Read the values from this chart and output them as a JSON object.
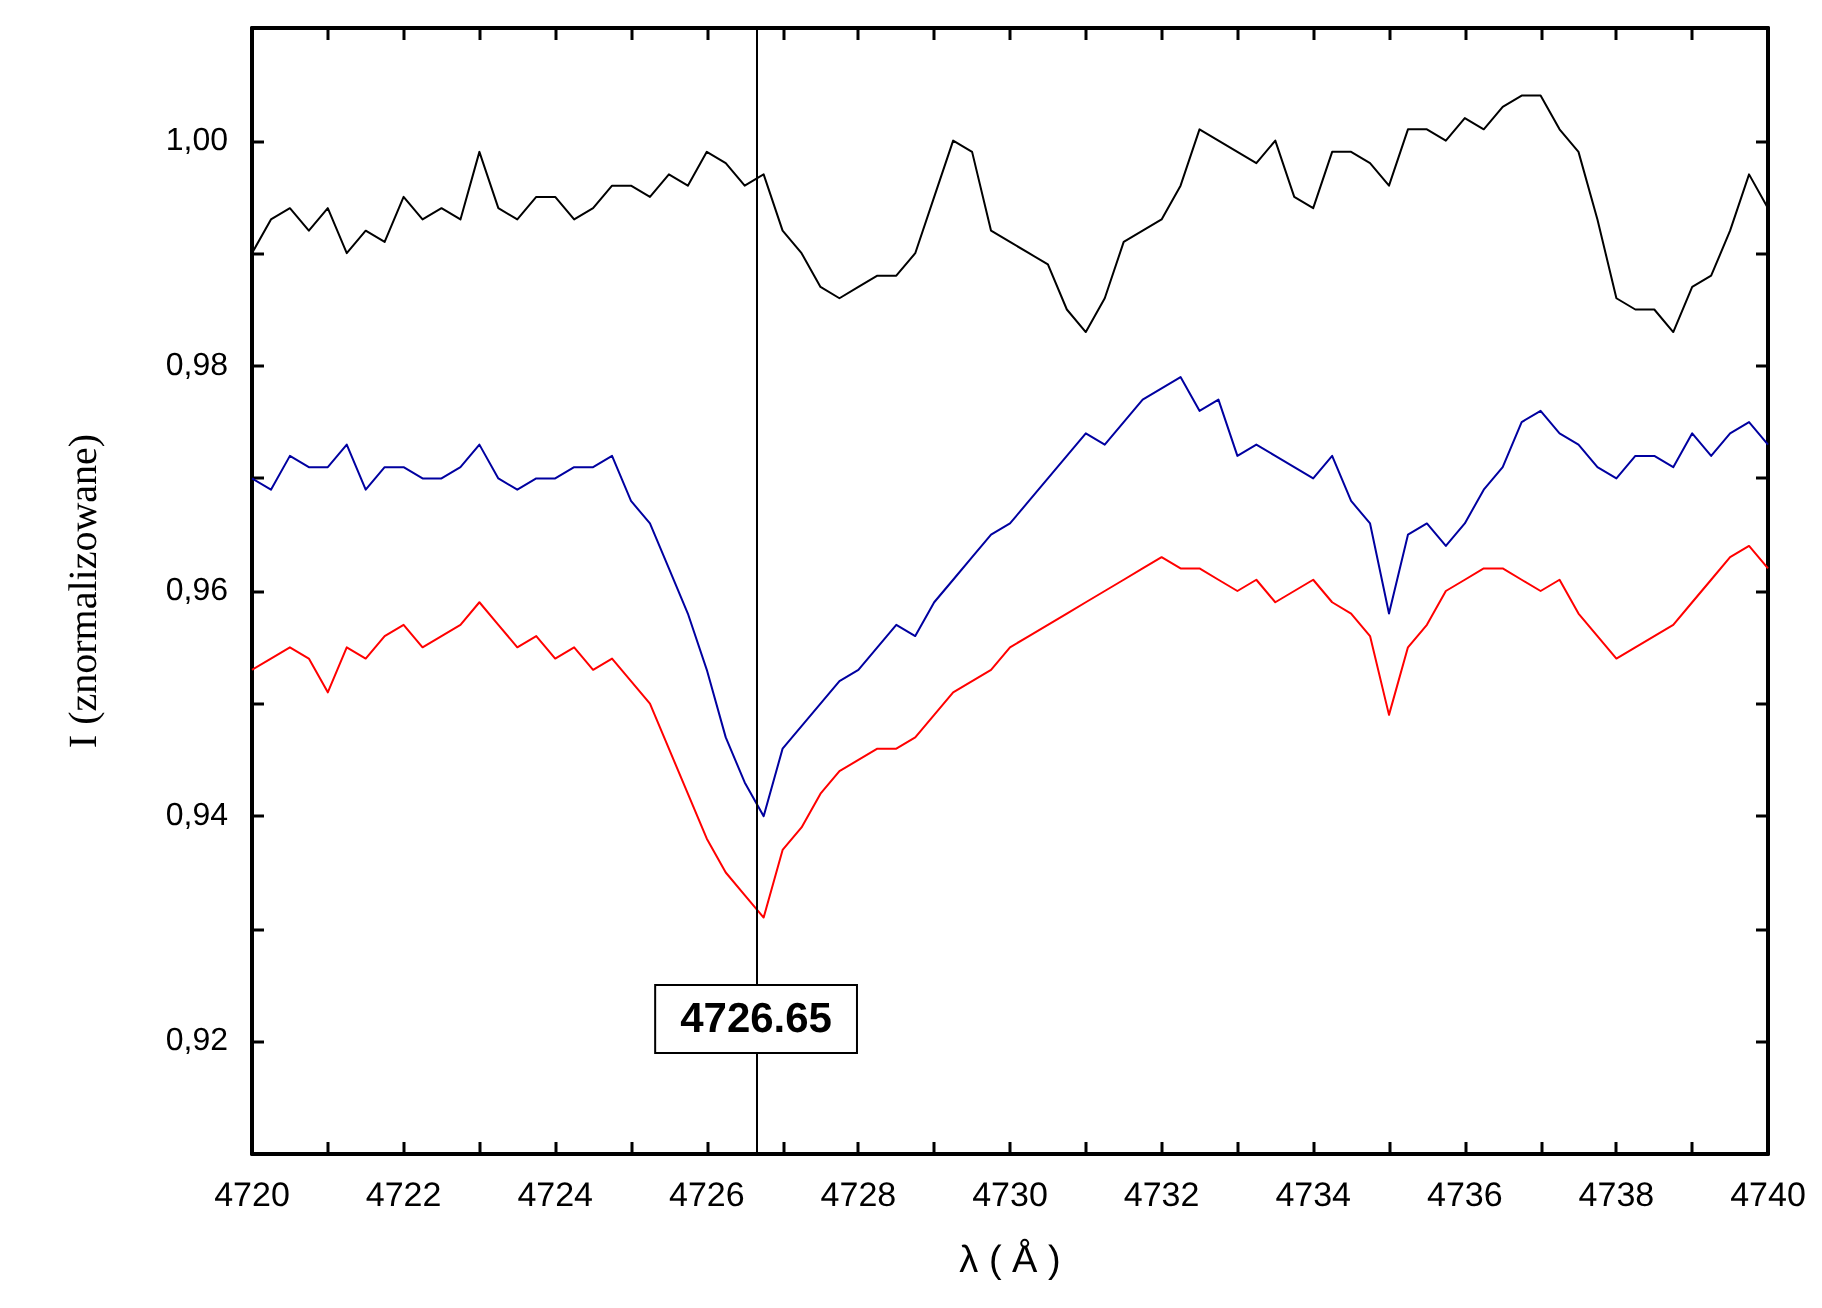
{
  "chart_data": {
    "type": "line",
    "xlabel": "λ ( Å )",
    "ylabel": "I (znormalizowane)",
    "x": [
      4720,
      4720.25,
      4720.5,
      4720.75,
      4721,
      4721.25,
      4721.5,
      4721.75,
      4722,
      4722.25,
      4722.5,
      4722.75,
      4723,
      4723.25,
      4723.5,
      4723.75,
      4724,
      4724.25,
      4724.5,
      4724.75,
      4725,
      4725.25,
      4725.5,
      4725.75,
      4726,
      4726.25,
      4726.5,
      4726.75,
      4727,
      4727.25,
      4727.5,
      4727.75,
      4728,
      4728.25,
      4728.5,
      4728.75,
      4729,
      4729.25,
      4729.5,
      4729.75,
      4730,
      4730.25,
      4730.5,
      4730.75,
      4731,
      4731.25,
      4731.5,
      4731.75,
      4732,
      4732.25,
      4732.5,
      4732.75,
      4733,
      4733.25,
      4733.5,
      4733.75,
      4734,
      4734.25,
      4734.5,
      4734.75,
      4735,
      4735.25,
      4735.5,
      4735.75,
      4736,
      4736.25,
      4736.5,
      4736.75,
      4737,
      4737.25,
      4737.5,
      4737.75,
      4738,
      4738.25,
      4738.5,
      4738.75,
      4739,
      4739.25,
      4739.5,
      4739.75,
      4740
    ],
    "series": [
      {
        "color": "#000000",
        "values": [
          0.99,
          0.993,
          0.994,
          0.992,
          0.994,
          0.99,
          0.992,
          0.991,
          0.995,
          0.993,
          0.994,
          0.993,
          0.999,
          0.994,
          0.993,
          0.995,
          0.995,
          0.993,
          0.994,
          0.996,
          0.996,
          0.995,
          0.997,
          0.996,
          0.999,
          0.998,
          0.996,
          0.997,
          0.992,
          0.99,
          0.987,
          0.986,
          0.987,
          0.988,
          0.988,
          0.99,
          0.995,
          1.0,
          0.999,
          0.992,
          0.991,
          0.99,
          0.989,
          0.985,
          0.983,
          0.986,
          0.991,
          0.992,
          0.993,
          0.996,
          1.001,
          1.0,
          0.999,
          0.998,
          1.0,
          0.995,
          0.994,
          0.999,
          0.999,
          0.998,
          0.996,
          1.001,
          1.001,
          1.0,
          1.002,
          1.001,
          1.003,
          1.004,
          1.004,
          1.001,
          0.999,
          0.993,
          0.986,
          0.985,
          0.985,
          0.983,
          0.987,
          0.988,
          0.992,
          0.997,
          0.994
        ]
      },
      {
        "color": "#0000a0",
        "values": [
          0.97,
          0.969,
          0.972,
          0.971,
          0.971,
          0.973,
          0.969,
          0.971,
          0.971,
          0.97,
          0.97,
          0.971,
          0.973,
          0.97,
          0.969,
          0.97,
          0.97,
          0.971,
          0.971,
          0.972,
          0.968,
          0.966,
          0.962,
          0.958,
          0.953,
          0.947,
          0.943,
          0.94,
          0.946,
          0.948,
          0.95,
          0.952,
          0.953,
          0.955,
          0.957,
          0.956,
          0.959,
          0.961,
          0.963,
          0.965,
          0.966,
          0.968,
          0.97,
          0.972,
          0.974,
          0.973,
          0.975,
          0.977,
          0.978,
          0.979,
          0.976,
          0.977,
          0.972,
          0.973,
          0.972,
          0.971,
          0.97,
          0.972,
          0.968,
          0.966,
          0.958,
          0.965,
          0.966,
          0.964,
          0.966,
          0.969,
          0.971,
          0.975,
          0.976,
          0.974,
          0.973,
          0.971,
          0.97,
          0.972,
          0.972,
          0.971,
          0.974,
          0.972,
          0.974,
          0.975,
          0.973
        ]
      },
      {
        "color": "#ff0000",
        "values": [
          0.953,
          0.954,
          0.955,
          0.954,
          0.951,
          0.955,
          0.954,
          0.956,
          0.957,
          0.955,
          0.956,
          0.957,
          0.959,
          0.957,
          0.955,
          0.956,
          0.954,
          0.955,
          0.953,
          0.954,
          0.952,
          0.95,
          0.946,
          0.942,
          0.938,
          0.935,
          0.933,
          0.931,
          0.937,
          0.939,
          0.942,
          0.944,
          0.945,
          0.946,
          0.946,
          0.947,
          0.949,
          0.951,
          0.952,
          0.953,
          0.955,
          0.956,
          0.957,
          0.958,
          0.959,
          0.96,
          0.961,
          0.962,
          0.963,
          0.962,
          0.962,
          0.961,
          0.96,
          0.961,
          0.959,
          0.96,
          0.961,
          0.959,
          0.958,
          0.956,
          0.949,
          0.955,
          0.957,
          0.96,
          0.961,
          0.962,
          0.962,
          0.961,
          0.96,
          0.961,
          0.958,
          0.956,
          0.954,
          0.955,
          0.956,
          0.957,
          0.959,
          0.961,
          0.963,
          0.964,
          0.962
        ]
      }
    ],
    "xlim": [
      4720,
      4740
    ],
    "xticks": [
      4720,
      {
        "value": 4721,
        "label": null
      },
      4722,
      {
        "value": 4723,
        "label": null
      },
      4724,
      {
        "value": 4725,
        "label": null
      },
      4726,
      {
        "value": 4727,
        "label": null
      },
      4728,
      {
        "value": 4729,
        "label": null
      },
      4730,
      {
        "value": 4731,
        "label": null
      },
      4732,
      {
        "value": 4733,
        "label": null
      },
      4734,
      {
        "value": 4735,
        "label": null
      },
      4736,
      {
        "value": 4737,
        "label": null
      },
      4738,
      {
        "value": 4739,
        "label": null
      },
      4740
    ],
    "ylim": [
      0.91,
      1.01
    ],
    "yticks": [
      {
        "value": 0.92,
        "label": "0,92"
      },
      {
        "value": 0.93,
        "label": null
      },
      {
        "value": 0.94,
        "label": "0,94"
      },
      {
        "value": 0.95,
        "label": null
      },
      {
        "value": 0.96,
        "label": "0,96"
      },
      {
        "value": 0.97,
        "label": null
      },
      {
        "value": 0.98,
        "label": "0,98"
      },
      {
        "value": 0.99,
        "label": null
      },
      {
        "value": 1.0,
        "label": "1,00"
      }
    ],
    "ref_lines": [
      {
        "axis": "x",
        "value": 4726.65,
        "label": "4726.65",
        "color": "#000000"
      }
    ],
    "grid": false,
    "marker": "none",
    "line_style": "solid"
  }
}
